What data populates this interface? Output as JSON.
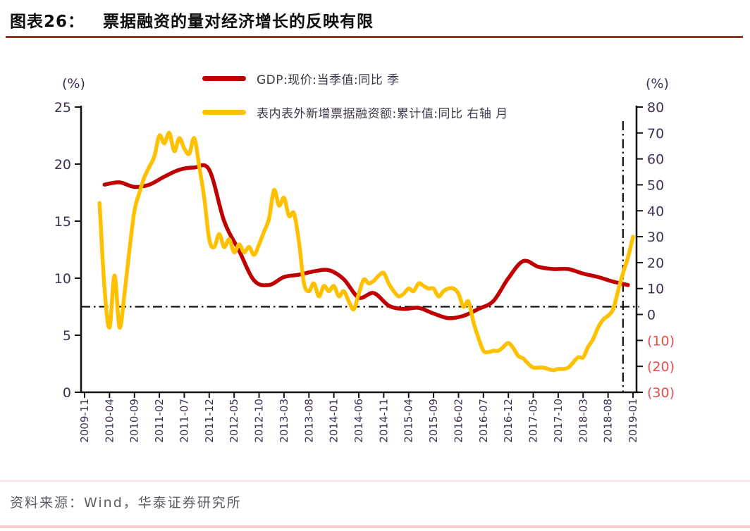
{
  "header": {
    "label": "图表26：",
    "title": "票据融资的量对经济增长的反映有限"
  },
  "legend": [
    {
      "label": "GDP:现价:当季值:同比 季",
      "color": "#C00000"
    },
    {
      "label": "表内表外新增票据融资额:累计值:同比 右轴 月",
      "color": "#FFC000"
    }
  ],
  "footer": {
    "source": "资料来源：Wind，华泰证券研究所"
  },
  "colors": {
    "title_underline": "#A93226",
    "axis_text": "#3F3152",
    "negative_ticks": "#E84C4C",
    "gdp_line": "#C00000",
    "bill_line": "#FFC000"
  },
  "chart_data": {
    "type": "line",
    "title": "票据融资的量对经济增长的反映有限",
    "legend_position": "top",
    "grid": false,
    "axis_color": "#3F3152",
    "left_axis": {
      "unit": "(%)",
      "range": [
        0,
        25
      ],
      "ticks": [
        25,
        20,
        15,
        10,
        5,
        0
      ],
      "series": "GDP:现价:当季值:同比 季"
    },
    "right_axis": {
      "unit": "(%)",
      "range": [
        -30,
        80
      ],
      "ticks": [
        80,
        70,
        60,
        50,
        40,
        30,
        20,
        10,
        0,
        -10,
        -20,
        -30
      ],
      "negative_tick_format": "parentheses",
      "negative_tick_color": "#E84C4C",
      "series": "表内表外新增票据融资额:累计值:同比 右轴 月"
    },
    "x_axis": {
      "start": "2009-11",
      "end": "2019-01",
      "tick_labels": [
        "2009-11",
        "2010-04",
        "2010-09",
        "2011-02",
        "2011-07",
        "2011-12",
        "2012-05",
        "2012-10",
        "2013-03",
        "2013-08",
        "2014-01",
        "2014-06",
        "2014-11",
        "2015-04",
        "2015-09",
        "2016-02",
        "2016-07",
        "2016-12",
        "2017-05",
        "2017-10",
        "2018-03",
        "2018-08",
        "2019-01"
      ]
    },
    "reference_lines": {
      "horizontal_dashdot_left_axis_value": 7.5,
      "vertical_dashdot_x": "2018-11"
    },
    "series": [
      {
        "id": "gdp",
        "name": "GDP:现价:当季值:同比 季",
        "axis": "left",
        "color": "#C00000",
        "frequency": "quarterly",
        "x": [
          "2010-03",
          "2010-06",
          "2010-09",
          "2010-12",
          "2011-03",
          "2011-06",
          "2011-09",
          "2011-12",
          "2012-03",
          "2012-06",
          "2012-09",
          "2012-12",
          "2013-03",
          "2013-06",
          "2013-09",
          "2013-12",
          "2014-03",
          "2014-06",
          "2014-09",
          "2014-12",
          "2015-03",
          "2015-06",
          "2015-09",
          "2015-12",
          "2016-03",
          "2016-06",
          "2016-09",
          "2016-12",
          "2017-03",
          "2017-06",
          "2017-09",
          "2017-12",
          "2018-03",
          "2018-06",
          "2018-09",
          "2018-12"
        ],
        "values": [
          18.2,
          18.4,
          18.0,
          18.2,
          18.9,
          19.5,
          19.7,
          19.5,
          15.0,
          12.4,
          9.8,
          9.4,
          10.1,
          10.3,
          10.6,
          10.7,
          9.9,
          8.3,
          8.7,
          7.6,
          7.3,
          7.4,
          6.9,
          6.5,
          6.7,
          7.3,
          8.0,
          10.0,
          11.5,
          11.0,
          10.8,
          10.8,
          10.4,
          10.1,
          9.7,
          9.4
        ]
      },
      {
        "id": "bill-financing",
        "name": "表内表外新增票据融资额:累计值:同比 右轴 月",
        "axis": "right",
        "color": "#FFC000",
        "frequency": "monthly",
        "x": [
          "2010-02",
          "2010-03",
          "2010-04",
          "2010-05",
          "2010-06",
          "2010-07",
          "2010-08",
          "2010-09",
          "2010-10",
          "2010-11",
          "2010-12",
          "2011-01",
          "2011-02",
          "2011-03",
          "2011-04",
          "2011-05",
          "2011-06",
          "2011-07",
          "2011-08",
          "2011-09",
          "2011-10",
          "2011-11",
          "2011-12",
          "2012-01",
          "2012-02",
          "2012-03",
          "2012-04",
          "2012-05",
          "2012-06",
          "2012-07",
          "2012-08",
          "2012-09",
          "2012-10",
          "2012-11",
          "2012-12",
          "2013-01",
          "2013-02",
          "2013-03",
          "2013-04",
          "2013-05",
          "2013-06",
          "2013-07",
          "2013-08",
          "2013-09",
          "2013-10",
          "2013-11",
          "2013-12",
          "2014-01",
          "2014-02",
          "2014-03",
          "2014-04",
          "2014-05",
          "2014-06",
          "2014-07",
          "2014-08",
          "2014-09",
          "2014-10",
          "2014-11",
          "2014-12",
          "2015-01",
          "2015-02",
          "2015-03",
          "2015-04",
          "2015-05",
          "2015-06",
          "2015-07",
          "2015-08",
          "2015-09",
          "2015-10",
          "2015-11",
          "2015-12",
          "2016-01",
          "2016-02",
          "2016-03",
          "2016-04",
          "2016-05",
          "2016-06",
          "2016-07",
          "2016-08",
          "2016-09",
          "2016-10",
          "2016-11",
          "2016-12",
          "2017-01",
          "2017-02",
          "2017-03",
          "2017-04",
          "2017-05",
          "2017-06",
          "2017-07",
          "2017-08",
          "2017-09",
          "2017-10",
          "2017-11",
          "2017-12",
          "2018-01",
          "2018-02",
          "2018-03",
          "2018-04",
          "2018-05",
          "2018-06",
          "2018-07",
          "2018-08",
          "2018-09",
          "2018-10",
          "2018-11",
          "2018-12",
          "2019-01"
        ],
        "values": [
          43,
          10,
          -5,
          15,
          -5,
          8,
          25,
          40,
          47,
          53,
          57,
          61,
          69,
          66,
          70,
          63,
          68,
          64,
          62,
          68,
          57,
          45,
          29,
          26,
          31,
          26,
          29,
          24,
          27,
          24,
          26,
          23,
          27,
          32,
          37,
          48,
          42,
          45,
          38,
          39,
          28,
          12,
          9,
          12,
          7,
          11,
          9,
          11,
          7,
          9,
          5,
          2,
          8,
          13.5,
          12,
          13,
          15,
          16,
          12,
          9,
          7,
          8,
          10,
          9,
          12,
          11,
          10,
          10,
          7,
          9,
          10,
          10,
          8,
          3,
          5,
          -3,
          -9,
          -14,
          -14.5,
          -14,
          -14,
          -12.5,
          -11,
          -13,
          -16,
          -17,
          -19,
          -20.5,
          -20.5,
          -20.5,
          -21,
          -21.5,
          -21,
          -21,
          -20.5,
          -18.5,
          -16.5,
          -16.5,
          -12.5,
          -9.5,
          -5,
          -2,
          -0.5,
          2,
          9,
          16,
          22,
          30
        ]
      }
    ]
  }
}
